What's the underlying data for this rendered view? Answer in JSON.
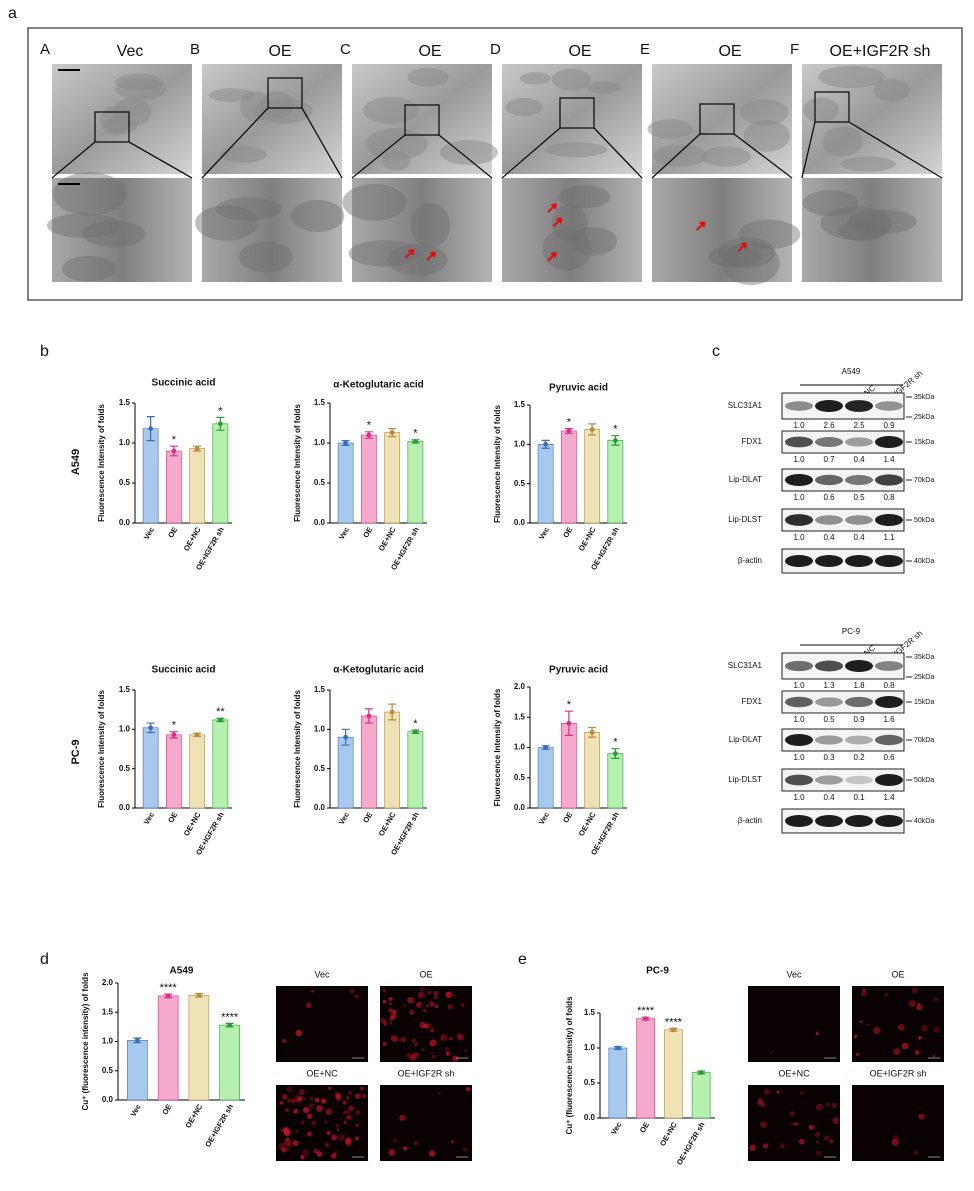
{
  "panel_a": {
    "label": "a",
    "columns": [
      {
        "letter": "A",
        "title": "Vec"
      },
      {
        "letter": "B",
        "title": "OE"
      },
      {
        "letter": "C",
        "title": "OE"
      },
      {
        "letter": "D",
        "title": "OE"
      },
      {
        "letter": "E",
        "title": "OE"
      },
      {
        "letter": "F",
        "title": "OE+IGF2R sh"
      }
    ]
  },
  "panel_labels": {
    "b": "b",
    "c": "c",
    "d": "d",
    "e": "e"
  },
  "row_labels": [
    "A549",
    "PC-9"
  ],
  "chart_data": [
    {
      "type": "bar",
      "title": "Succinic acid",
      "ylabel": "Fluorescence Intensity of folds",
      "categories": [
        "Vec",
        "OE",
        "OE+NC",
        "OE+IGF2R sh"
      ],
      "values": [
        1.18,
        0.9,
        0.93,
        1.24
      ],
      "errors": [
        0.15,
        0.06,
        0.03,
        0.08
      ],
      "annotations": [
        null,
        "*",
        null,
        "*"
      ],
      "ylim": [
        0,
        1.5
      ],
      "yticks": [
        {
          "value": 0,
          "label": "0.0"
        },
        {
          "value": 0.5,
          "label": "0.5"
        },
        {
          "value": 1,
          "label": "1.0"
        },
        {
          "value": 1.5,
          "label": "1.5"
        }
      ],
      "colors": [
        "#a9c8ee",
        "#f6aacb",
        "#efe2b6",
        "#b5f0ae"
      ],
      "edge_colors": [
        "#3a6fb5",
        "#d6308a",
        "#b88a3c",
        "#2e9a3a"
      ]
    },
    {
      "type": "bar",
      "title": "α-Ketoglutaric acid",
      "ylabel": "Fluorescence Intensity of folds",
      "categories": [
        "Vec",
        "OE",
        "OE+NC",
        "OE+IGF2R sh"
      ],
      "values": [
        1.0,
        1.1,
        1.13,
        1.02
      ],
      "errors": [
        0.03,
        0.04,
        0.05,
        0.02
      ],
      "annotations": [
        null,
        "*",
        null,
        "*"
      ],
      "ylim": [
        0,
        1.5
      ],
      "yticks": [
        {
          "value": 0,
          "label": "0.0"
        },
        {
          "value": 0.5,
          "label": "0.5"
        },
        {
          "value": 1,
          "label": "1.0"
        },
        {
          "value": 1.5,
          "label": "1.5"
        }
      ],
      "colors": [
        "#a9c8ee",
        "#f6aacb",
        "#efe2b6",
        "#b5f0ae"
      ],
      "edge_colors": [
        "#3a6fb5",
        "#d6308a",
        "#b88a3c",
        "#2e9a3a"
      ]
    },
    {
      "type": "bar",
      "title": "Pyruvic acid",
      "ylabel": "Fluorescence Intensity of folds",
      "categories": [
        "Vec",
        "OE",
        "OE+NC",
        "OE+IGF2R sh"
      ],
      "values": [
        1.0,
        1.17,
        1.19,
        1.05
      ],
      "errors": [
        0.05,
        0.03,
        0.07,
        0.06
      ],
      "annotations": [
        null,
        "*",
        null,
        "*"
      ],
      "ylim": [
        0,
        1.5
      ],
      "yticks": [
        {
          "value": 0,
          "label": "0.0"
        },
        {
          "value": 0.5,
          "label": "0.5"
        },
        {
          "value": 1,
          "label": "1.0"
        },
        {
          "value": 1.5,
          "label": "1.5"
        }
      ],
      "colors": [
        "#a9c8ee",
        "#f6aacb",
        "#efe2b6",
        "#b5f0ae"
      ],
      "edge_colors": [
        "#3a6fb5",
        "#d6308a",
        "#b88a3c",
        "#2e9a3a"
      ]
    },
    {
      "type": "bar",
      "title": "Succinic acid",
      "ylabel": "Fluorescence Intensity of folds",
      "categories": [
        "Vec",
        "OE",
        "OE+NC",
        "OE+IGF2R sh"
      ],
      "values": [
        1.02,
        0.93,
        0.93,
        1.12
      ],
      "errors": [
        0.06,
        0.04,
        0.02,
        0.02
      ],
      "annotations": [
        null,
        "*",
        null,
        "**"
      ],
      "ylim": [
        0,
        1.5
      ],
      "yticks": [
        {
          "value": 0,
          "label": "0.0"
        },
        {
          "value": 0.5,
          "label": "0.5"
        },
        {
          "value": 1,
          "label": "1.0"
        },
        {
          "value": 1.5,
          "label": "1.5"
        }
      ],
      "colors": [
        "#a9c8ee",
        "#f6aacb",
        "#efe2b6",
        "#b5f0ae"
      ],
      "edge_colors": [
        "#3a6fb5",
        "#d6308a",
        "#b88a3c",
        "#2e9a3a"
      ]
    },
    {
      "type": "bar",
      "title": "α-Ketoglutaric acid",
      "ylabel": "Fluorescence Intensity of folds",
      "categories": [
        "Vec",
        "OE",
        "OE+NC",
        "OE+IGF2R sh"
      ],
      "values": [
        0.9,
        1.17,
        1.22,
        0.97
      ],
      "errors": [
        0.1,
        0.09,
        0.1,
        0.02
      ],
      "annotations": [
        null,
        null,
        null,
        "*"
      ],
      "ylim": [
        0,
        1.5
      ],
      "yticks": [
        {
          "value": 0,
          "label": "0.0"
        },
        {
          "value": 0.5,
          "label": "0.5"
        },
        {
          "value": 1,
          "label": "1.0"
        },
        {
          "value": 1.5,
          "label": "1.5"
        }
      ],
      "colors": [
        "#a9c8ee",
        "#f6aacb",
        "#efe2b6",
        "#b5f0ae"
      ],
      "edge_colors": [
        "#3a6fb5",
        "#d6308a",
        "#b88a3c",
        "#2e9a3a"
      ]
    },
    {
      "type": "bar",
      "title": "Pyruvic acid",
      "ylabel": "Fluorescence Intensity of folds",
      "categories": [
        "Vec",
        "OE",
        "OE+NC",
        "OE+IGF2R sh"
      ],
      "values": [
        1.0,
        1.4,
        1.25,
        0.9
      ],
      "errors": [
        0.03,
        0.2,
        0.08,
        0.08
      ],
      "annotations": [
        null,
        "*",
        null,
        "*"
      ],
      "ylim": [
        0,
        2
      ],
      "yticks": [
        {
          "value": 0,
          "label": "0.0"
        },
        {
          "value": 0.5,
          "label": "0.5"
        },
        {
          "value": 1,
          "label": "1.0"
        },
        {
          "value": 1.5,
          "label": "1.5"
        },
        {
          "value": 2,
          "label": "2.0"
        }
      ],
      "colors": [
        "#a9c8ee",
        "#f6aacb",
        "#efe2b6",
        "#b5f0ae"
      ],
      "edge_colors": [
        "#3a6fb5",
        "#d6308a",
        "#b88a3c",
        "#2e9a3a"
      ]
    },
    {
      "type": "bar",
      "title": "A549",
      "ylabel": "Cu⁺ (fluorescence intensity) of folds",
      "categories": [
        "Vec",
        "OE",
        "OE+NC",
        "OE+IGF2R sh"
      ],
      "values": [
        1.02,
        1.78,
        1.79,
        1.28
      ],
      "errors": [
        0.04,
        0.03,
        0.03,
        0.03
      ],
      "annotations": [
        null,
        "****",
        null,
        "****"
      ],
      "ylim": [
        0,
        2
      ],
      "yticks": [
        {
          "value": 0,
          "label": "0.0"
        },
        {
          "value": 0.5,
          "label": "0.5"
        },
        {
          "value": 1,
          "label": "1.0"
        },
        {
          "value": 1.5,
          "label": "1.5"
        },
        {
          "value": 2,
          "label": "2.0"
        }
      ],
      "colors": [
        "#a9c8ee",
        "#f6aacb",
        "#efe2b6",
        "#b5f0ae"
      ],
      "edge_colors": [
        "#3a6fb5",
        "#d6308a",
        "#b88a3c",
        "#2e9a3a"
      ]
    },
    {
      "type": "bar",
      "title": "PC-9",
      "ylabel": "Cu⁺ (fluorescence intensity) of folds",
      "categories": [
        "Vec",
        "OE",
        "OE+NC",
        "OE+IGF2R sh"
      ],
      "values": [
        1.0,
        1.42,
        1.26,
        0.65
      ],
      "errors": [
        0.02,
        0.02,
        0.02,
        0.02
      ],
      "annotations": [
        null,
        "****",
        "****",
        null
      ],
      "ylim": [
        0,
        1.5
      ],
      "yticks": [
        {
          "value": 0,
          "label": "0.0"
        },
        {
          "value": 0.5,
          "label": "0.5"
        },
        {
          "value": 1,
          "label": "1.0"
        },
        {
          "value": 1.5,
          "label": "1.5"
        }
      ],
      "colors": [
        "#a9c8ee",
        "#f6aacb",
        "#efe2b6",
        "#b5f0ae"
      ],
      "edge_colors": [
        "#3a6fb5",
        "#d6308a",
        "#b88a3c",
        "#2e9a3a"
      ]
    }
  ],
  "blots": [
    {
      "header": "A549",
      "lanes": [
        "Vec",
        "OE",
        "OE+NC",
        "OE+IGF2R sh"
      ],
      "rows": [
        {
          "protein": "SLC31A1",
          "markers": [
            "35kDa",
            "25kDa"
          ],
          "quant": [
            "1.0",
            "2.6",
            "2.5",
            "0.9"
          ]
        },
        {
          "protein": "FDX1",
          "markers": [
            "15kDa"
          ],
          "quant": [
            "1.0",
            "0.7",
            "0.4",
            "1.4"
          ]
        },
        {
          "protein": "Lip-DLAT",
          "markers": [
            "70kDa"
          ],
          "quant": [
            "1.0",
            "0.6",
            "0.5",
            "0.8"
          ]
        },
        {
          "protein": "Lip-DLST",
          "markers": [
            "50kDa"
          ],
          "quant": [
            "1.0",
            "0.4",
            "0.4",
            "1.1"
          ]
        },
        {
          "protein": "β-actin",
          "markers": [
            "40kDa"
          ],
          "quant": null
        }
      ]
    },
    {
      "header": "PC-9",
      "lanes": [
        "Vec",
        "OE",
        "OE+NC",
        "OE+IGF2R sh"
      ],
      "rows": [
        {
          "protein": "SLC31A1",
          "markers": [
            "35kDa",
            "25kDa"
          ],
          "quant": [
            "1.0",
            "1.3",
            "1.8",
            "0.8"
          ]
        },
        {
          "protein": "FDX1",
          "markers": [
            "15kDa"
          ],
          "quant": [
            "1.0",
            "0.5",
            "0.9",
            "1.6"
          ]
        },
        {
          "protein": "Lip-DLAT",
          "markers": [
            "70kDa"
          ],
          "quant": [
            "1.0",
            "0.3",
            "0.2",
            "0.6"
          ]
        },
        {
          "protein": "Lip-DLST",
          "markers": [
            "50kDa"
          ],
          "quant": [
            "1.0",
            "0.4",
            "0.1",
            "1.4"
          ]
        },
        {
          "protein": "β-actin",
          "markers": [
            "40kDa"
          ],
          "quant": null
        }
      ]
    }
  ],
  "images": {
    "d": [
      "Vec",
      "OE",
      "OE+NC",
      "OE+IGF2R sh"
    ],
    "e": [
      "Vec",
      "OE",
      "OE+NC",
      "OE+IGF2R sh"
    ]
  }
}
